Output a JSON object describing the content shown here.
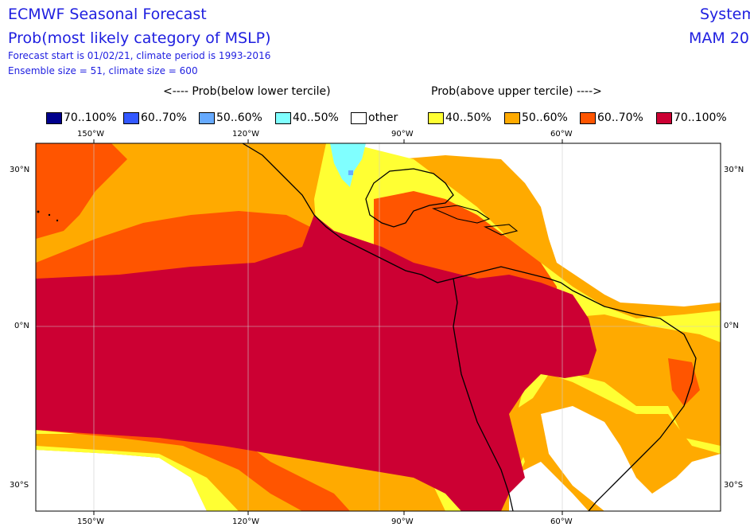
{
  "header": {
    "title": "ECMWF Seasonal Forecast",
    "subtitle": "Prob(most likely category of MSLP)",
    "info_line1": "Forecast start is 01/02/21, climate period is 1993-2016",
    "info_line2": "Ensemble size = 51, climate size = 600",
    "right_line1": "System",
    "right_line2": "MAM 20"
  },
  "direction_labels": {
    "below": "<---- Prob(below lower tercile)",
    "above": "Prob(above upper tercile) ---->"
  },
  "legend": [
    {
      "label": "70..100%",
      "color": "#00008c"
    },
    {
      "label": "60..70%",
      "color": "#3358ff"
    },
    {
      "label": "50..60%",
      "color": "#66aaff"
    },
    {
      "label": "40..50%",
      "color": "#80ffff"
    },
    {
      "label": "other",
      "color": "#ffffff"
    },
    {
      "label": "40..50%",
      "color": "#ffff33"
    },
    {
      "label": "50..60%",
      "color": "#ffaa00"
    },
    {
      "label": "60..70%",
      "color": "#ff5500"
    },
    {
      "label": "70..100%",
      "color": "#cc0033"
    }
  ],
  "axes": {
    "lon_labels": [
      "150°W",
      "120°W",
      "90°W",
      "60°W"
    ],
    "lat_labels": [
      "30°N",
      "0°N",
      "30°S"
    ]
  }
}
